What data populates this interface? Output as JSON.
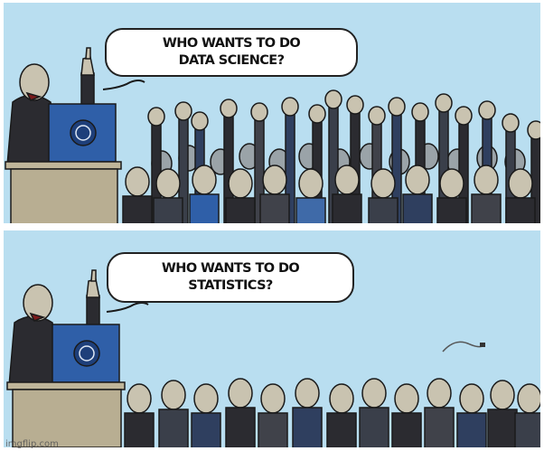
{
  "panels": [
    {
      "line1": "WHO WANTS TO DO",
      "line2": "DATA SCIENCE?"
    },
    {
      "line1": "WHO WANTS TO DO",
      "line2": "STATISTICS?"
    }
  ],
  "watermark": "imgflip.com",
  "colors": {
    "sky": "#b9def0",
    "podium": "#2f5fa8",
    "skin": "#c9c3b0",
    "suit_dark": "#2b2b30",
    "crowd_navy": "#2f3f5f",
    "outline": "#1a1a1a"
  },
  "icons": [
    "speaker-figure",
    "podium-globe-emblem",
    "raised-hands-crowd",
    "paper-scrap"
  ]
}
